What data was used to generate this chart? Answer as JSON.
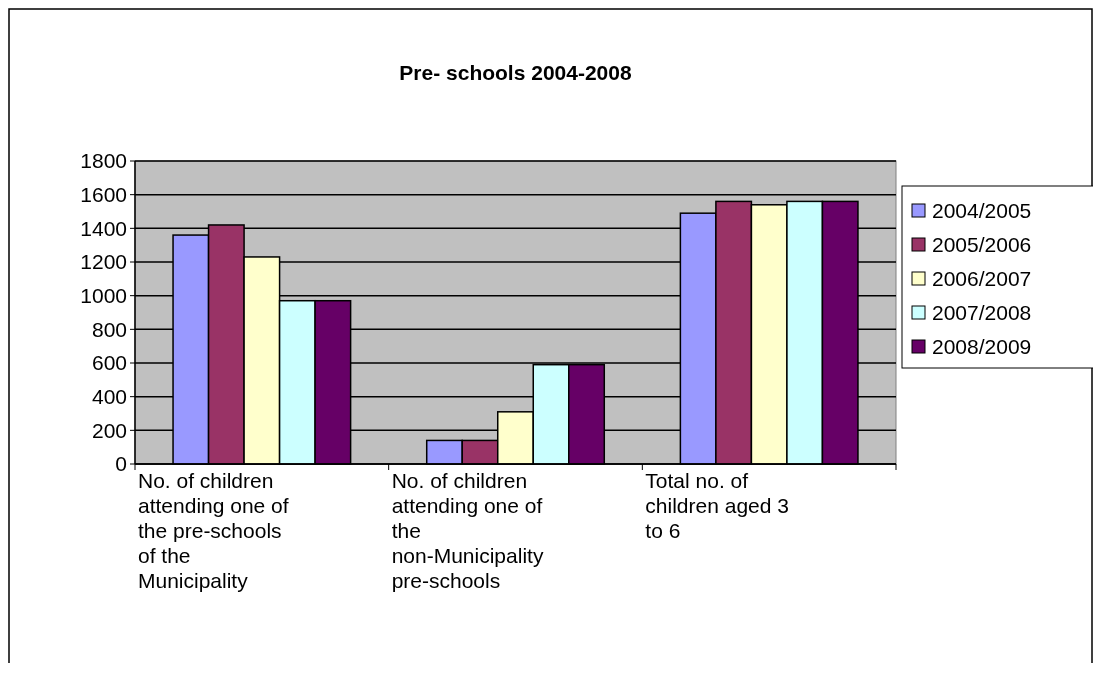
{
  "chart_data": {
    "type": "bar",
    "title": "Pre- schools 2004-2008",
    "categories": [
      "No. of children attending one of the pre-schools of the Municipality",
      "No. of children attending one of the non-Municipality pre-schools",
      "Total no. of children  aged 3 to 6"
    ],
    "series": [
      {
        "name": "2004/2005",
        "color": "#9999ff",
        "values": [
          1360,
          140,
          1490
        ]
      },
      {
        "name": "2005/2006",
        "color": "#993366",
        "values": [
          1420,
          140,
          1560
        ]
      },
      {
        "name": "2006/2007",
        "color": "#ffffcc",
        "values": [
          1230,
          310,
          1540
        ]
      },
      {
        "name": "2007/2008",
        "color": "#ccffff",
        "values": [
          970,
          590,
          1560
        ]
      },
      {
        "name": "2008/2009",
        "color": "#660066",
        "values": [
          970,
          590,
          1560
        ]
      }
    ],
    "ylim": [
      0,
      1800
    ],
    "yticks": [
      0,
      200,
      400,
      600,
      800,
      1000,
      1200,
      1400,
      1600,
      1800
    ],
    "grid": "y",
    "legend": "right"
  }
}
